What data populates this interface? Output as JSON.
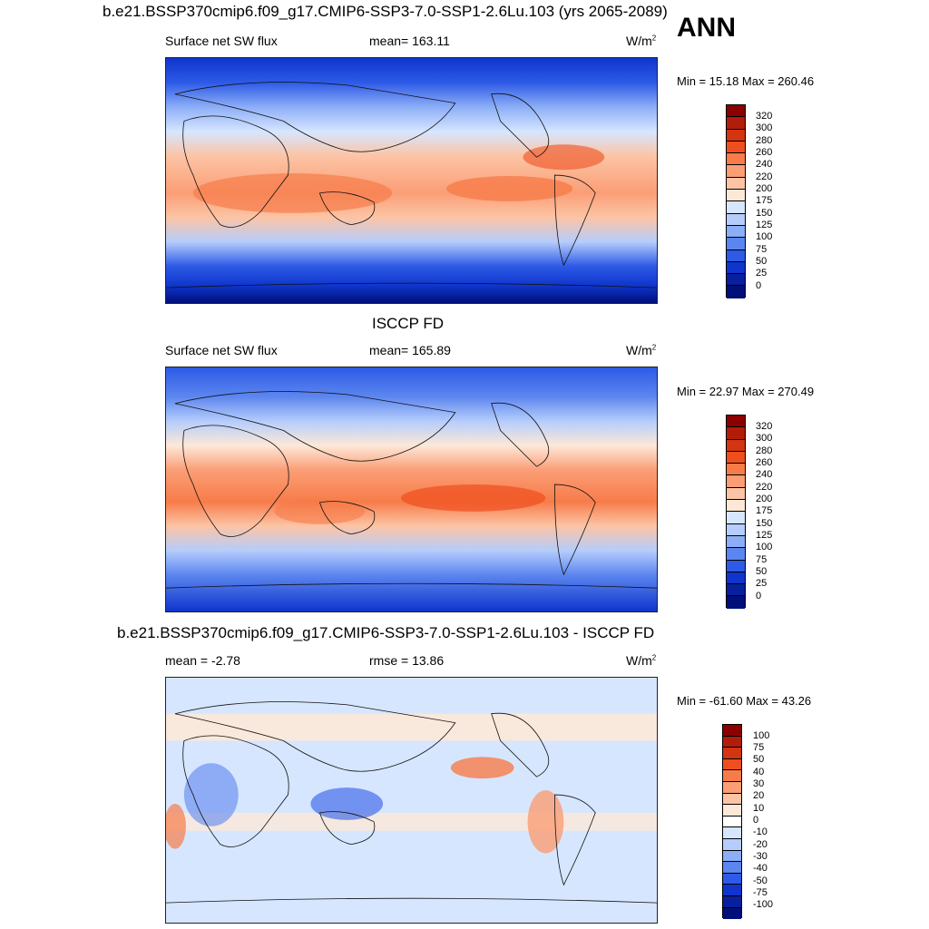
{
  "season": "ANN",
  "units_main": "W/m",
  "units_sup": "2",
  "panels": [
    {
      "title": "b.e21.BSSP370cmip6.f09_g17.CMIP6-SSP3-7.0-SSP1-2.6Lu.103 (yrs 2065-2089)",
      "left_label": "Surface net SW flux",
      "center_label": "mean= 163.11",
      "stat": "Min =  15.18 Max = 260.46",
      "levels": [
        "320",
        "300",
        "280",
        "260",
        "240",
        "220",
        "200",
        "175",
        "150",
        "125",
        "100",
        "75",
        "50",
        "25",
        "0"
      ]
    },
    {
      "title": "ISCCP FD",
      "left_label": "Surface net SW flux",
      "center_label": "mean= 165.89",
      "stat": "Min =  22.97 Max = 270.49",
      "levels": [
        "320",
        "300",
        "280",
        "260",
        "240",
        "220",
        "200",
        "175",
        "150",
        "125",
        "100",
        "75",
        "50",
        "25",
        "0"
      ]
    },
    {
      "title": "b.e21.BSSP370cmip6.f09_g17.CMIP6-SSP3-7.0-SSP1-2.6Lu.103 - ISCCP FD",
      "left_label": "mean =  -2.78",
      "center_label": "rmse =  13.86",
      "stat": "Min = -61.60 Max =  43.26",
      "levels": [
        "100",
        "75",
        "50",
        "40",
        "30",
        "20",
        "10",
        "0",
        "-10",
        "-20",
        "-30",
        "-40",
        "-50",
        "-75",
        "-100"
      ]
    }
  ],
  "colors": {
    "abs_scale": [
      "#8b0000",
      "#b21d0a",
      "#d33412",
      "#ef4f1e",
      "#f77c4a",
      "#fb9e76",
      "#fcc4a5",
      "#fde8d8",
      "#d6e6ff",
      "#b5cdfc",
      "#8caef7",
      "#5c86ef",
      "#2d5ae6",
      "#0f35cc",
      "#08209e",
      "#000f7a"
    ],
    "diff_scale": [
      "#8b0000",
      "#b21d0a",
      "#d33412",
      "#ef4f1e",
      "#f77c4a",
      "#fb9e76",
      "#fcc4a5",
      "#fde8d8",
      "#ffffff",
      "#d6e6ff",
      "#b5cdfc",
      "#8caef7",
      "#5c86ef",
      "#2d5ae6",
      "#0f35cc",
      "#08209e",
      "#000f7a"
    ]
  }
}
